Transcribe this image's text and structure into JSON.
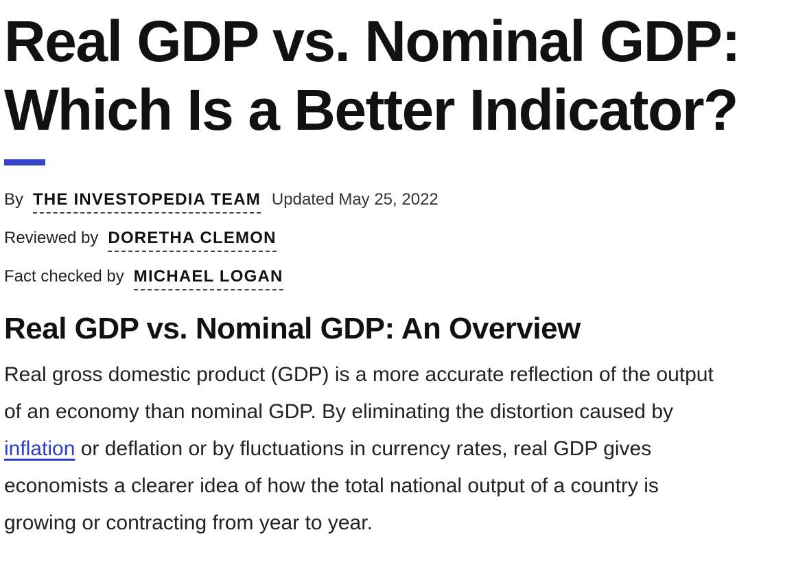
{
  "article": {
    "title_line1": "Real GDP vs. Nominal GDP:",
    "title_line2": "Which Is a Better Indicator?",
    "accent_color": "#3344c9",
    "byline": {
      "by_label": "By",
      "author": "THE INVESTOPEDIA TEAM",
      "updated": "Updated May 25, 2022",
      "reviewed_label": "Reviewed by",
      "reviewer": "DORETHA CLEMON",
      "factcheck_label": "Fact checked by",
      "factchecker": "MICHAEL LOGAN"
    },
    "section_heading": "Real GDP vs. Nominal GDP: An Overview",
    "paragraph": {
      "line1": "Real gross domestic product (GDP) is a more accurate reflection of the output",
      "line2": "of an economy than nominal GDP. By eliminating the distortion caused by",
      "link_text": "inflation",
      "line3_rest": " or deflation or by fluctuations in currency rates, real GDP gives",
      "line4": "economists a clearer idea of how the total national output of a country is",
      "line5": "growing or contracting from year to year."
    },
    "link_color": "#2c3fc9"
  }
}
